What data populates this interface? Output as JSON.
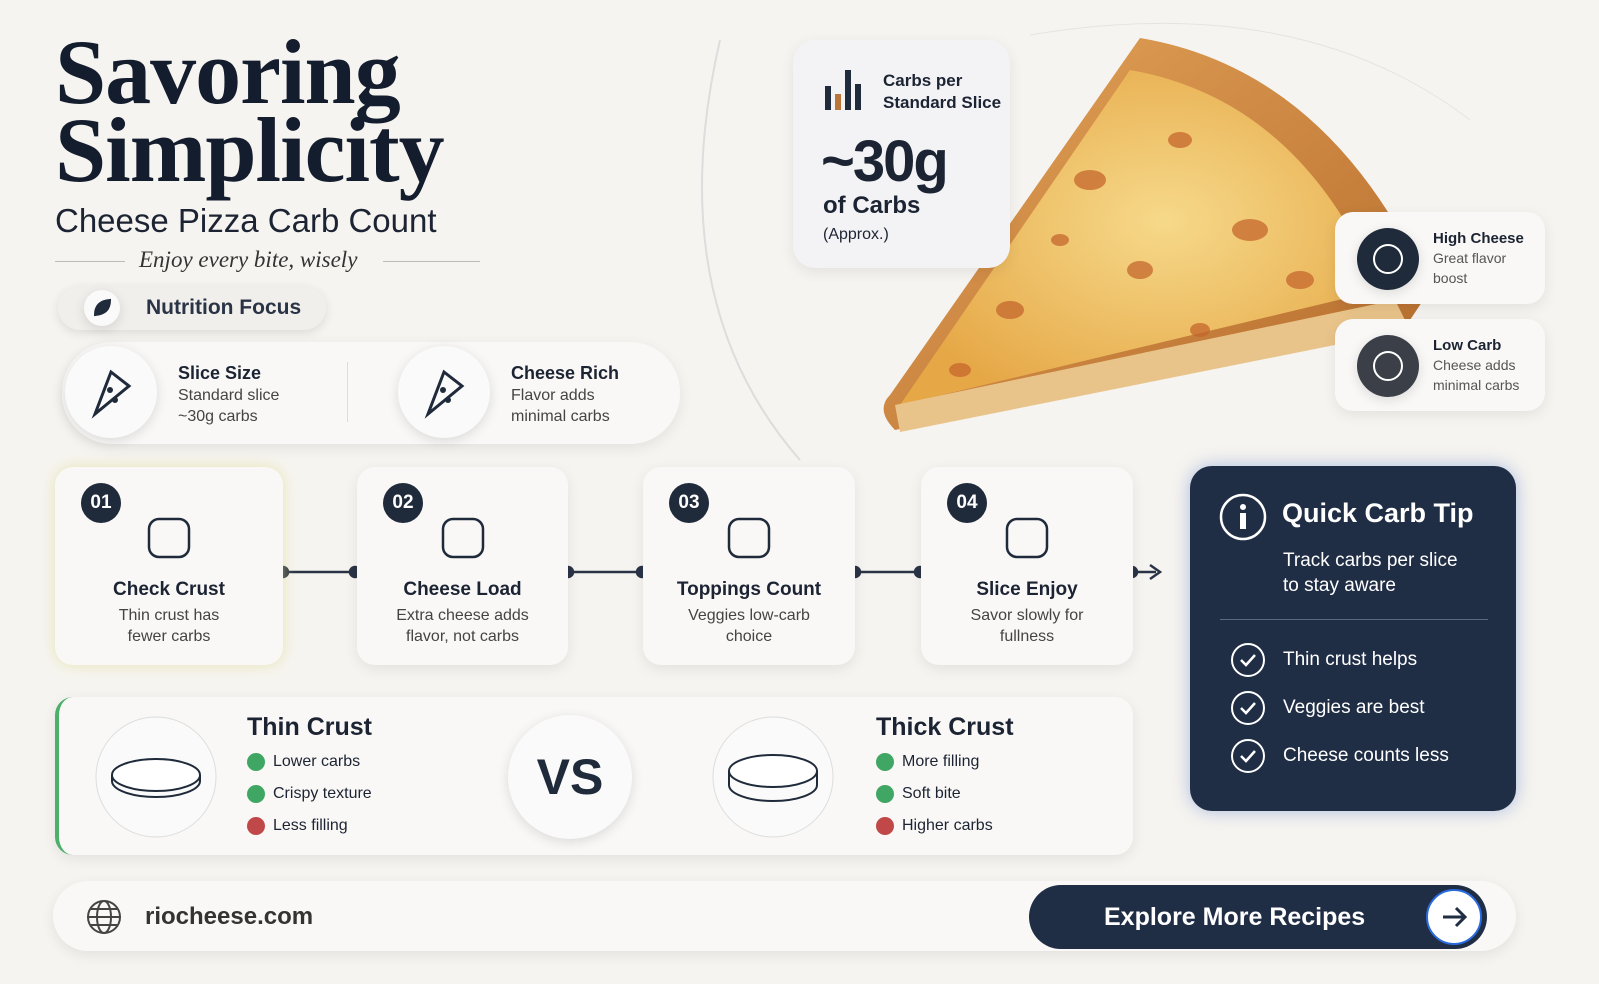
{
  "header": {
    "title_line1": "Savoring",
    "title_line2": "Simplicity",
    "subtitle": "Cheese Pizza Carb Count",
    "tagline": "Enjoy every bite, wisely"
  },
  "focus_badge": "Nutrition Focus",
  "highlights": [
    {
      "title": "Slice Size",
      "lines": [
        "Standard slice",
        "~30g carbs"
      ]
    },
    {
      "title": "Cheese Rich",
      "lines": [
        "Flavor adds",
        "minimal carbs"
      ]
    }
  ],
  "stat_card": {
    "label_lines": [
      "Carbs per",
      "Standard Slice"
    ],
    "value": "~30g",
    "unit": "of Carbs",
    "note": "(Approx.)"
  },
  "side_badges": [
    {
      "title": "High Cheese",
      "lines": [
        "Great flavor",
        "boost"
      ]
    },
    {
      "title": "Low Carb",
      "lines": [
        "Cheese adds",
        "minimal carbs"
      ]
    }
  ],
  "steps": [
    {
      "number": "01",
      "title": "Check Crust",
      "lines": [
        "Thin crust has",
        "fewer carbs"
      ]
    },
    {
      "number": "02",
      "title": "Cheese Load",
      "lines": [
        "Extra cheese adds",
        "flavor, not carbs"
      ]
    },
    {
      "number": "03",
      "title": "Toppings Count",
      "lines": [
        "Veggies low-carb",
        "choice"
      ]
    },
    {
      "number": "04",
      "title": "Slice Enjoy",
      "lines": [
        "Savor slowly for",
        "fullness"
      ]
    }
  ],
  "tip": {
    "title": "Quick Carb Tip",
    "lines": [
      "Track carbs per slice",
      "to stay aware"
    ],
    "items": [
      "Thin crust helps",
      "Veggies are best",
      "Cheese counts less"
    ]
  },
  "comparison": {
    "vs": "VS",
    "left": {
      "title": "Thin Crust",
      "points": [
        {
          "text": "Lower carbs",
          "positive": true
        },
        {
          "text": "Crispy texture",
          "positive": true
        },
        {
          "text": "Less filling",
          "positive": false
        }
      ]
    },
    "right": {
      "title": "Thick Crust",
      "points": [
        {
          "text": "More filling",
          "positive": true
        },
        {
          "text": "Soft bite",
          "positive": true
        },
        {
          "text": "Higher carbs",
          "positive": false
        }
      ]
    }
  },
  "footer": {
    "site": "riocheese.com",
    "button": "Explore More Recipes"
  }
}
